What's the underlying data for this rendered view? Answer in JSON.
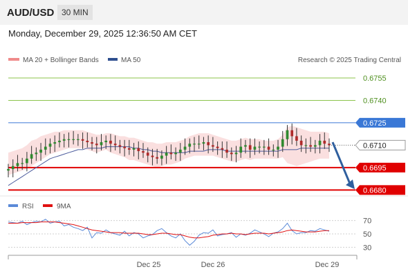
{
  "header": {
    "pair": "AUD/USD",
    "timeframe": "30 MIN"
  },
  "timestamp": "Monday, December 29, 2025 12:36:50 AM CET",
  "legend": {
    "ma20_bb": "MA 20 + Bollinger Bands",
    "ma50": "MA 50",
    "credit": "Research © 2025 Trading Central"
  },
  "rsi_legend": {
    "rsi": "RSI",
    "ma": "9MA"
  },
  "colors": {
    "resistance": "#8bc34a",
    "pivot": "#3a78d6",
    "support": "#e00000",
    "arrow": "#2f5f9e",
    "band": "#f6c9c9",
    "ma50": "#4b5b9c",
    "rsi": "#5b8ad8",
    "rsi_ma": "#e01010"
  },
  "chart_data": [
    {
      "type": "candlestick",
      "title": "AUD/USD",
      "x_ticks": [
        "Dec 25",
        "Dec 26",
        "Dec 29"
      ],
      "y_range": [
        0.6676,
        0.6761
      ],
      "levels": [
        {
          "value": 0.6755,
          "label": "0.6755",
          "kind": "resistance"
        },
        {
          "value": 0.674,
          "label": "0.6740",
          "kind": "resistance"
        },
        {
          "value": 0.6725,
          "label": "0.6725",
          "kind": "pivot"
        },
        {
          "value": 0.6695,
          "label": "0.6695",
          "kind": "support"
        },
        {
          "value": 0.668,
          "label": "0.6680",
          "kind": "support"
        }
      ],
      "last_price": {
        "value": 0.671,
        "label": "0.6710"
      },
      "forecast_arrow": {
        "from": 0.6712,
        "to": 0.6681,
        "direction": "down"
      },
      "price_series": [
        0.6694,
        0.6696,
        0.6698,
        0.6698,
        0.6701,
        0.6704,
        0.6705,
        0.6707,
        0.6709,
        0.6711,
        0.6712,
        0.6713,
        0.6714,
        0.6714,
        0.6714,
        0.6714,
        0.6713,
        0.6712,
        0.6711,
        0.671,
        0.6712,
        0.6713,
        0.6711,
        0.671,
        0.6709,
        0.6708,
        0.6707,
        0.6708,
        0.6706,
        0.6705,
        0.6703,
        0.6702,
        0.6701,
        0.6703,
        0.6705,
        0.6704,
        0.6705,
        0.6707,
        0.6709,
        0.6711,
        0.6711,
        0.6711,
        0.6712,
        0.671,
        0.6709,
        0.6708,
        0.6707,
        0.6705,
        0.6704,
        0.6705,
        0.6709,
        0.671,
        0.6707,
        0.6709,
        0.6709,
        0.6709,
        0.6707,
        0.6707,
        0.6709,
        0.6714,
        0.672,
        0.6716,
        0.6713,
        0.671,
        0.671,
        0.6709,
        0.671,
        0.6713,
        0.6711,
        0.671
      ],
      "ma50_series": [
        0.6683,
        0.6685,
        0.6687,
        0.6689,
        0.6691,
        0.6693,
        0.6695,
        0.6697,
        0.6699,
        0.6701,
        0.6702,
        0.6703,
        0.6704,
        0.6705,
        0.6706,
        0.6707,
        0.6707,
        0.6708,
        0.6708,
        0.6708,
        0.6708,
        0.6709,
        0.6709,
        0.6709,
        0.6709,
        0.6709,
        0.6709,
        0.6708,
        0.6708,
        0.6707,
        0.6707,
        0.6706,
        0.6706,
        0.6705,
        0.6705,
        0.6705,
        0.6705,
        0.6705,
        0.6705,
        0.6706,
        0.6706,
        0.6706,
        0.6706,
        0.6707,
        0.6707,
        0.6707,
        0.6707,
        0.6706,
        0.6706,
        0.6706,
        0.6706,
        0.6706,
        0.6706,
        0.6706,
        0.6706,
        0.6706,
        0.6706,
        0.6706,
        0.6706,
        0.6707,
        0.6707,
        0.6707,
        0.6707,
        0.6708,
        0.6708,
        0.6708,
        0.6708,
        0.6708,
        0.6708,
        0.6708
      ],
      "band_upper": [
        0.6705,
        0.6706,
        0.6707,
        0.6708,
        0.671,
        0.6713,
        0.6714,
        0.6716,
        0.6717,
        0.6718,
        0.6719,
        0.6719,
        0.672,
        0.672,
        0.672,
        0.672,
        0.672,
        0.6719,
        0.6718,
        0.6717,
        0.6717,
        0.6718,
        0.6718,
        0.6717,
        0.6716,
        0.6716,
        0.6715,
        0.6715,
        0.6714,
        0.6713,
        0.6712,
        0.6712,
        0.6711,
        0.6711,
        0.6712,
        0.6712,
        0.6712,
        0.6713,
        0.6714,
        0.6716,
        0.6717,
        0.6718,
        0.6718,
        0.6718,
        0.6717,
        0.6716,
        0.6715,
        0.6714,
        0.6713,
        0.6713,
        0.6714,
        0.6715,
        0.6714,
        0.6714,
        0.6714,
        0.6713,
        0.6713,
        0.6713,
        0.6714,
        0.6717,
        0.6722,
        0.6723,
        0.6722,
        0.6721,
        0.672,
        0.6719,
        0.6719,
        0.6719,
        0.6719,
        0.6718
      ],
      "band_lower": [
        0.669,
        0.6691,
        0.6692,
        0.6693,
        0.6694,
        0.6696,
        0.6698,
        0.67,
        0.6702,
        0.6704,
        0.6705,
        0.6706,
        0.6707,
        0.6708,
        0.6708,
        0.6708,
        0.6708,
        0.6707,
        0.6706,
        0.6705,
        0.6706,
        0.6707,
        0.6705,
        0.6704,
        0.6703,
        0.6702,
        0.67,
        0.67,
        0.6699,
        0.6698,
        0.6697,
        0.6696,
        0.6695,
        0.6696,
        0.6697,
        0.6697,
        0.6698,
        0.6699,
        0.6701,
        0.6702,
        0.6703,
        0.6703,
        0.6703,
        0.6703,
        0.6703,
        0.6702,
        0.6701,
        0.67,
        0.6699,
        0.6699,
        0.67,
        0.6701,
        0.67,
        0.6701,
        0.6701,
        0.6701,
        0.6701,
        0.6701,
        0.6701,
        0.6702,
        0.6698,
        0.6697,
        0.6696,
        0.6697,
        0.6698,
        0.6699,
        0.67,
        0.6701,
        0.6701,
        0.6701
      ]
    },
    {
      "type": "line",
      "title": "RSI",
      "y_ticks": [
        70,
        50,
        30
      ],
      "y_range": [
        20,
        80
      ],
      "series": [
        {
          "name": "RSI",
          "values": [
            68,
            67,
            66,
            69,
            64,
            67,
            69,
            68,
            72,
            66,
            68,
            69,
            62,
            64,
            60,
            58,
            55,
            60,
            44,
            52,
            51,
            56,
            52,
            50,
            48,
            54,
            47,
            52,
            50,
            44,
            47,
            49,
            55,
            58,
            52,
            47,
            44,
            50,
            40,
            33,
            39,
            48,
            52,
            51,
            56,
            47,
            49,
            50,
            52,
            45,
            50,
            48,
            51,
            56,
            53,
            50,
            46,
            51,
            53,
            58,
            66,
            55,
            50,
            52,
            52,
            55,
            54,
            58,
            56,
            54
          ]
        },
        {
          "name": "9MA",
          "values": [
            66,
            66,
            66,
            67,
            67,
            67,
            67,
            68,
            68,
            68,
            68,
            67,
            66,
            65,
            64,
            62,
            60,
            58,
            56,
            55,
            54,
            53,
            52,
            52,
            52,
            51,
            51,
            51,
            51,
            50,
            49,
            49,
            50,
            51,
            51,
            50,
            49,
            49,
            47,
            45,
            44,
            44,
            45,
            46,
            48,
            49,
            50,
            50,
            51,
            50,
            50,
            49,
            50,
            51,
            51,
            51,
            50,
            51,
            52,
            53,
            55,
            56,
            55,
            54,
            53,
            53,
            53,
            54,
            55,
            55
          ]
        }
      ]
    }
  ]
}
